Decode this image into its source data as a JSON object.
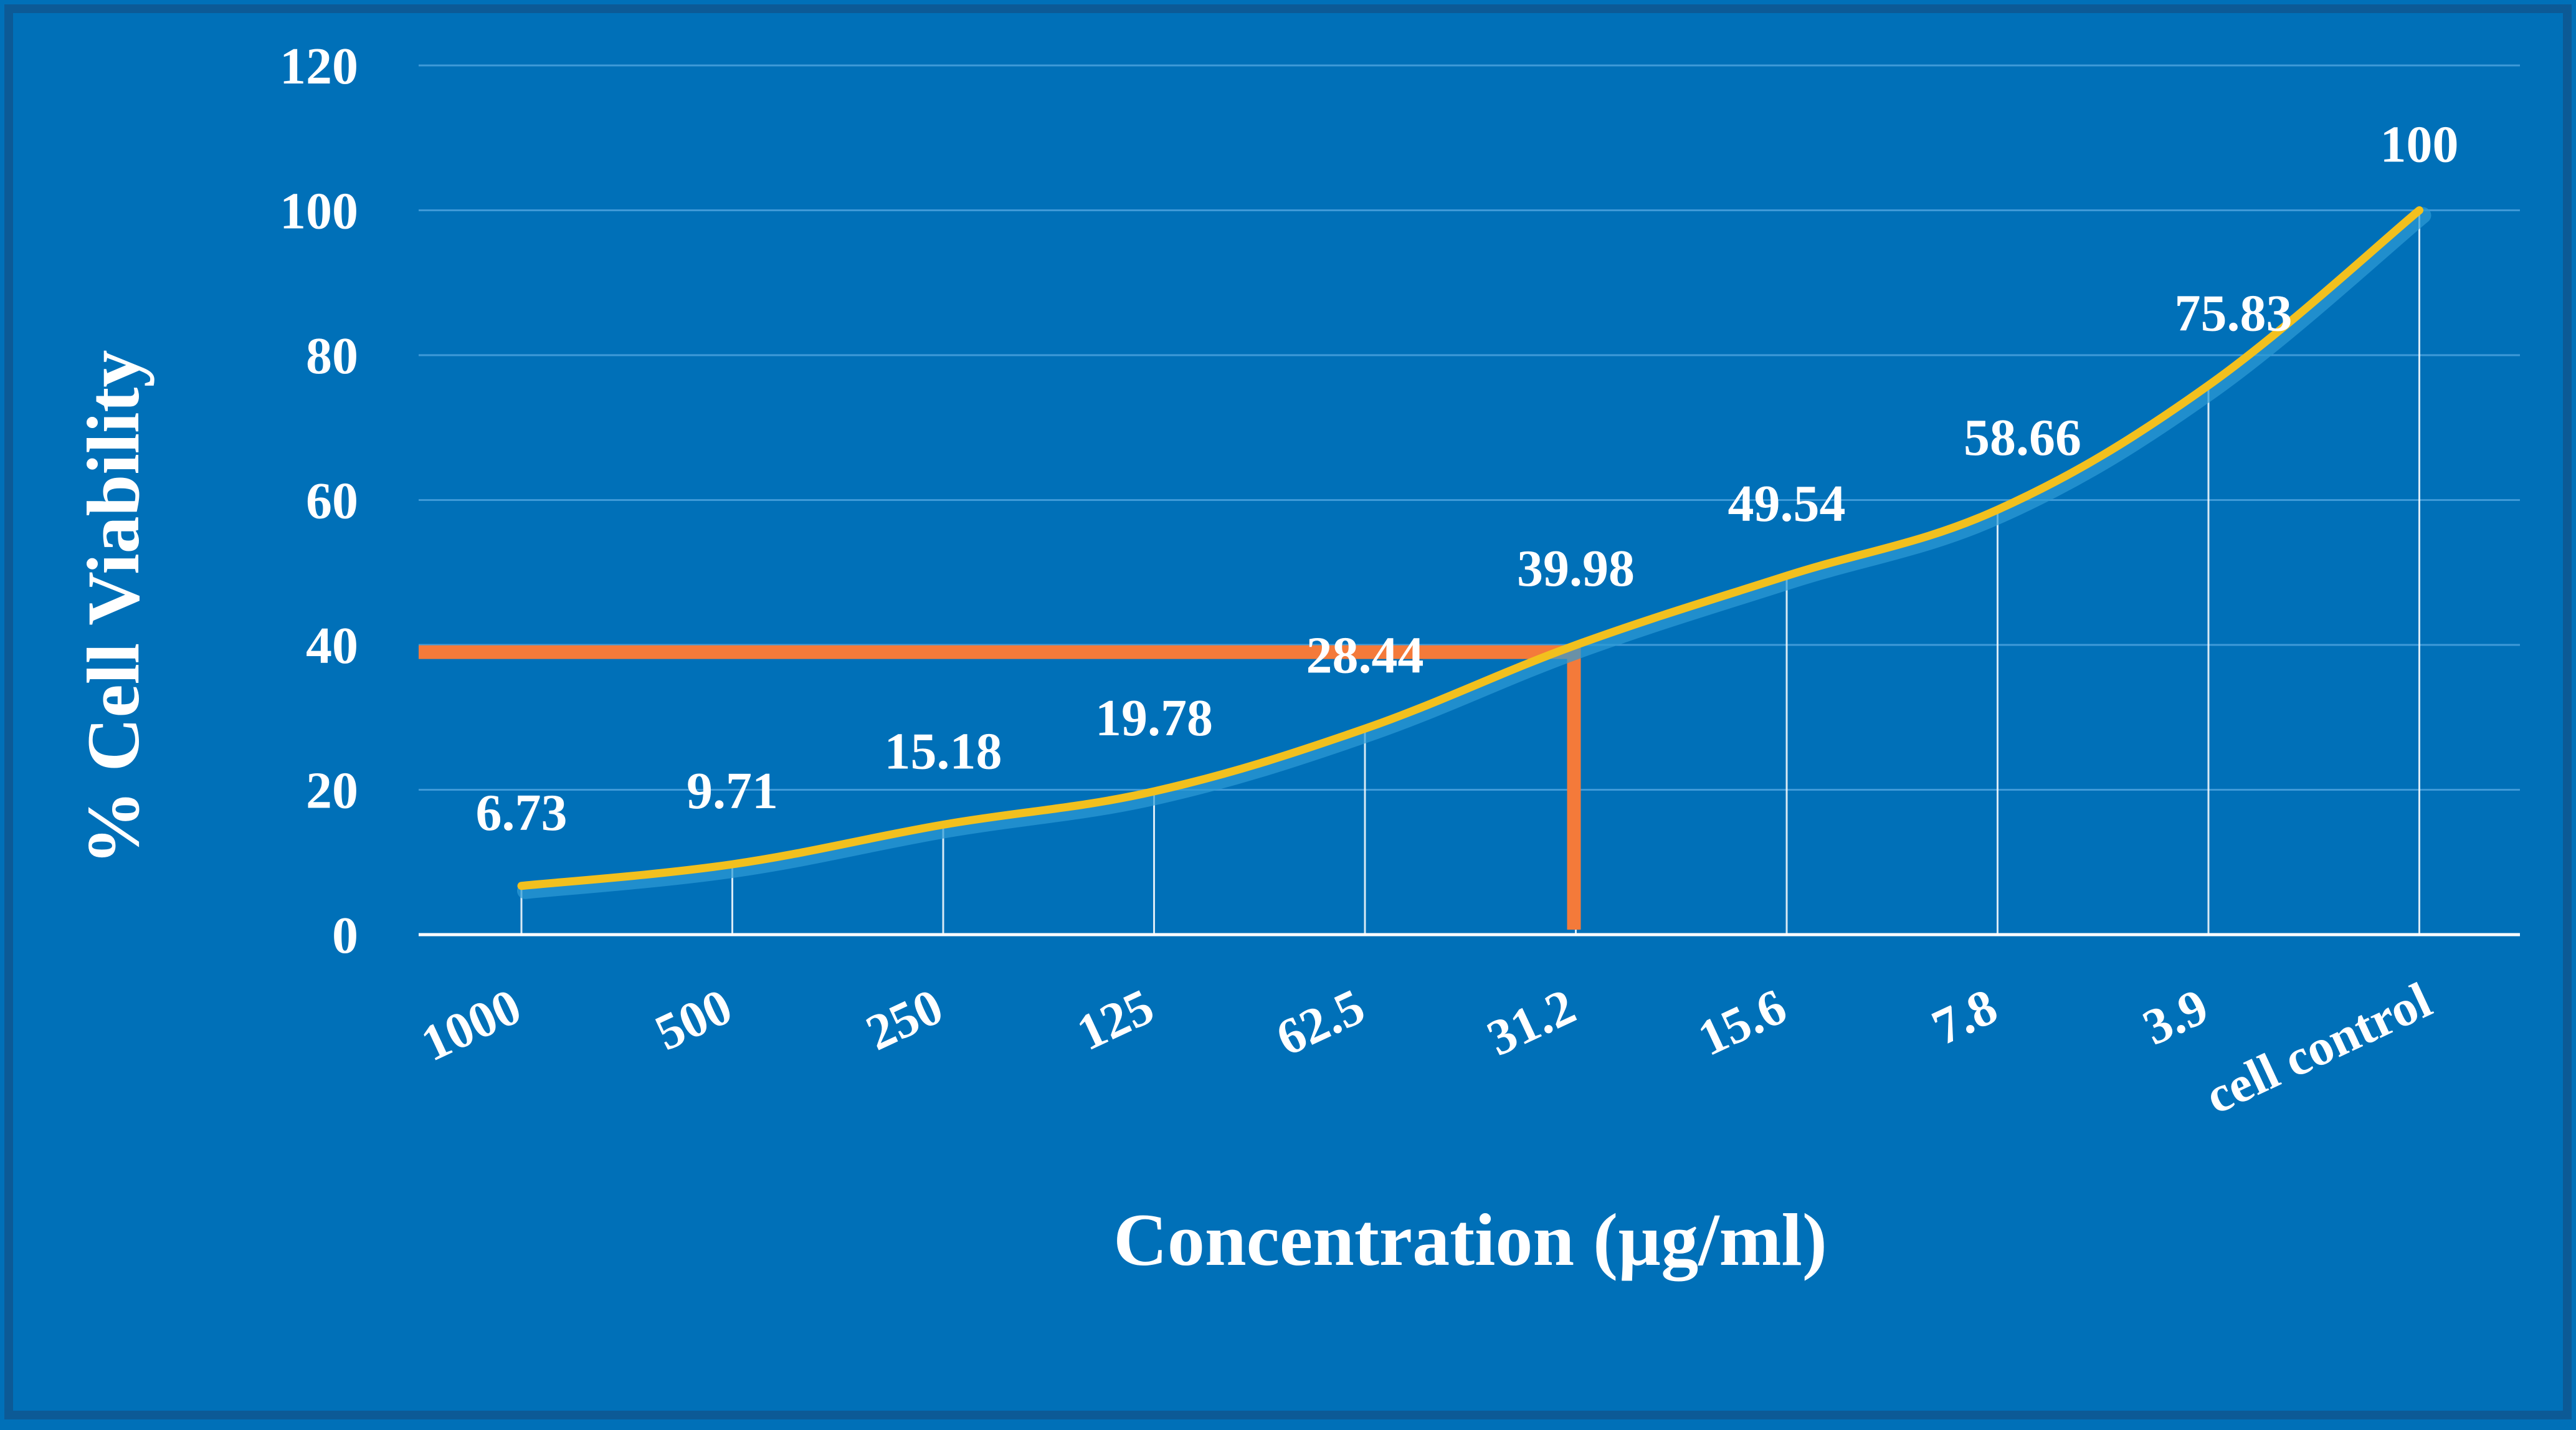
{
  "colors": {
    "background": "#0070B8",
    "border": "#0C5A96",
    "line": "#F2C01E",
    "line_shadow": "#2E9BD6",
    "marker": "#F47A3A",
    "gridline": "#3F9AD8",
    "text": "#FFFFFF"
  },
  "chart_data": {
    "type": "line",
    "title": "",
    "xlabel": "Concentration (µg/ml)",
    "ylabel": "% Cell Viability",
    "categories": [
      "1000",
      "500",
      "250",
      "125",
      "62.5",
      "31.2",
      "15.6",
      "7.8",
      "3.9",
      "cell control"
    ],
    "series": [
      {
        "name": "% Cell Viability",
        "values": [
          6.73,
          9.71,
          15.18,
          19.78,
          28.44,
          39.98,
          49.54,
          58.66,
          75.83,
          100
        ]
      }
    ],
    "data_labels": [
      "6.73",
      "9.71",
      "15.18",
      "19.78",
      "28.44",
      "39.98",
      "49.54",
      "58.66",
      "75.83",
      "100"
    ],
    "ylim": [
      0,
      120
    ],
    "yticks": [
      0,
      20,
      40,
      60,
      80,
      100,
      120
    ],
    "grid": true,
    "legend": "none",
    "annotation": {
      "description": "IC50 marker",
      "y_value": 39,
      "x_category_index": 5
    }
  }
}
